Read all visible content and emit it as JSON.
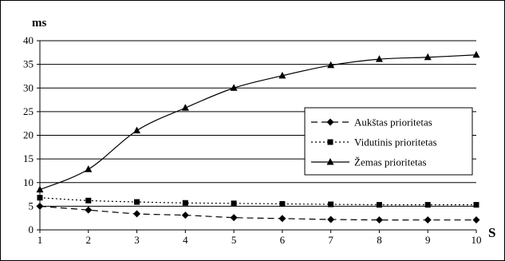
{
  "chart_data": {
    "type": "line",
    "xlabel": "S",
    "ylabel": "ms",
    "x": [
      1,
      2,
      3,
      4,
      5,
      6,
      7,
      8,
      9,
      10
    ],
    "ylim": [
      0,
      40
    ],
    "yticks": [
      0,
      5,
      10,
      15,
      20,
      25,
      30,
      35,
      40
    ],
    "grid": "horizontal",
    "legend": "right",
    "series": [
      {
        "name": "Aukštas prioritetas",
        "style": "dashed",
        "marker": "diamond",
        "values": [
          5.0,
          4.2,
          3.4,
          3.1,
          2.6,
          2.4,
          2.2,
          2.1,
          2.1,
          2.1
        ]
      },
      {
        "name": "Vidutinis prioritetas",
        "style": "dotted",
        "marker": "square",
        "values": [
          6.8,
          6.2,
          5.9,
          5.7,
          5.6,
          5.5,
          5.4,
          5.3,
          5.3,
          5.3
        ]
      },
      {
        "name": "Žemas prioritetas",
        "style": "solid",
        "marker": "triangle",
        "values": [
          8.5,
          12.8,
          21.0,
          25.8,
          30.0,
          32.6,
          34.8,
          36.1,
          36.5,
          37.0
        ]
      }
    ]
  }
}
